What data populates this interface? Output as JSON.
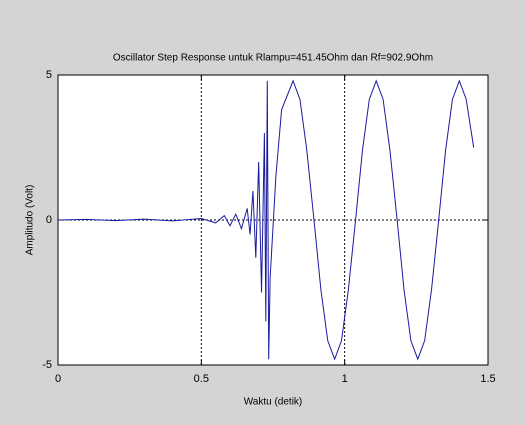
{
  "chart_data": {
    "type": "line",
    "title": "Oscillator Step Response untuk Rlampu=451.45Ohm dan Rf=902.9Ohm",
    "xlabel": "Waktu (detik)",
    "ylabel": "Amplitudo (Volt)",
    "x": [
      0,
      0.1,
      0.2,
      0.3,
      0.4,
      0.5,
      0.55,
      0.58,
      0.6,
      0.62,
      0.64,
      0.66,
      0.67,
      0.68,
      0.69,
      0.7,
      0.71,
      0.72,
      0.725,
      0.73,
      0.735,
      0.74,
      0.76,
      0.78,
      0.82,
      0.844,
      0.868,
      0.893,
      0.917,
      0.941,
      0.965,
      0.989,
      1.013,
      1.038,
      1.062,
      1.086,
      1.11,
      1.134,
      1.158,
      1.183,
      1.207,
      1.231,
      1.255,
      1.279,
      1.303,
      1.328,
      1.352,
      1.376,
      1.4,
      1.424,
      1.45
    ],
    "values": [
      0,
      0.02,
      -0.02,
      0.03,
      -0.03,
      0.05,
      -0.1,
      0.15,
      -0.2,
      0.2,
      -0.3,
      0.4,
      -0.5,
      1.0,
      -1.3,
      2.0,
      -2.5,
      3.0,
      -3.5,
      4.8,
      -4.8,
      -2,
      1.5,
      3.8,
      4.8,
      4.16,
      2.4,
      0,
      -2.4,
      -4.16,
      -4.8,
      -4.16,
      -2.4,
      0,
      2.4,
      4.16,
      4.8,
      4.16,
      2.4,
      0,
      -2.4,
      -4.16,
      -4.8,
      -4.16,
      -2.4,
      0,
      2.4,
      4.16,
      4.8,
      4.16,
      2.5
    ],
    "color": "#1a1aa0",
    "xlim": [
      0,
      1.5
    ],
    "ylim": [
      -5,
      5
    ],
    "xticks": [
      0,
      0.5,
      1,
      1.5
    ],
    "yticks": [
      -5,
      0,
      5
    ],
    "ref_x": [
      0.5,
      1
    ],
    "ref_y": [
      0
    ]
  }
}
